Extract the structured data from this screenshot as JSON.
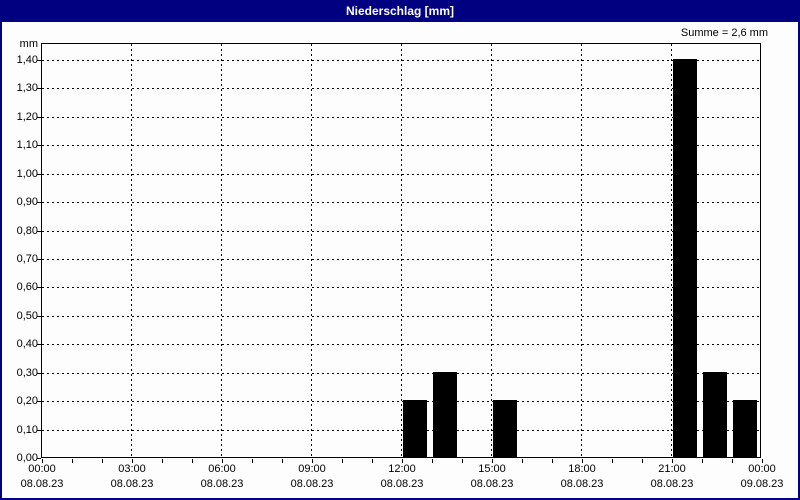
{
  "window": {
    "title": "Niederschlag [mm]"
  },
  "colors": {
    "titlebar_bg": "#000080",
    "titlebar_text": "#FFFFFF",
    "window_border": "#000080",
    "content_bg": "#FDFDFD",
    "bar": "#000000",
    "grid": "#000000",
    "axis": "#000000",
    "text": "#000000"
  },
  "chart_data": {
    "type": "bar",
    "title": "Niederschlag [mm]",
    "sum_text": "Summe = 2,6 mm",
    "y_unit_label": "mm",
    "ylim": [
      0,
      1.4
    ],
    "y_tick_step": 0.1,
    "y_tick_labels": [
      "0,00",
      "0,10",
      "0,20",
      "0,30",
      "0,40",
      "0,50",
      "0,60",
      "0,70",
      "0,80",
      "0,90",
      "1,00",
      "1,10",
      "1,20",
      "1,30",
      "1,40"
    ],
    "x_hours_range": [
      0,
      24
    ],
    "x_major_step_hours": 3,
    "x_minor_step_hours": 1,
    "x_tick_labels": [
      {
        "time": "00:00",
        "date": "08.08.23"
      },
      {
        "time": "03:00",
        "date": "08.08.23"
      },
      {
        "time": "06:00",
        "date": "08.08.23"
      },
      {
        "time": "09:00",
        "date": "08.08.23"
      },
      {
        "time": "12:00",
        "date": "08.08.23"
      },
      {
        "time": "15:00",
        "date": "08.08.23"
      },
      {
        "time": "18:00",
        "date": "08.08.23"
      },
      {
        "time": "21:00",
        "date": "08.08.23"
      },
      {
        "time": "00:00",
        "date": "09.08.23"
      }
    ],
    "bars": [
      {
        "hour": 12,
        "value": 0.2
      },
      {
        "hour": 13,
        "value": 0.3
      },
      {
        "hour": 15,
        "value": 0.2
      },
      {
        "hour": 21,
        "value": 1.4
      },
      {
        "hour": 22,
        "value": 0.3
      },
      {
        "hour": 23,
        "value": 0.2
      }
    ],
    "grid": true,
    "legend": "none"
  }
}
